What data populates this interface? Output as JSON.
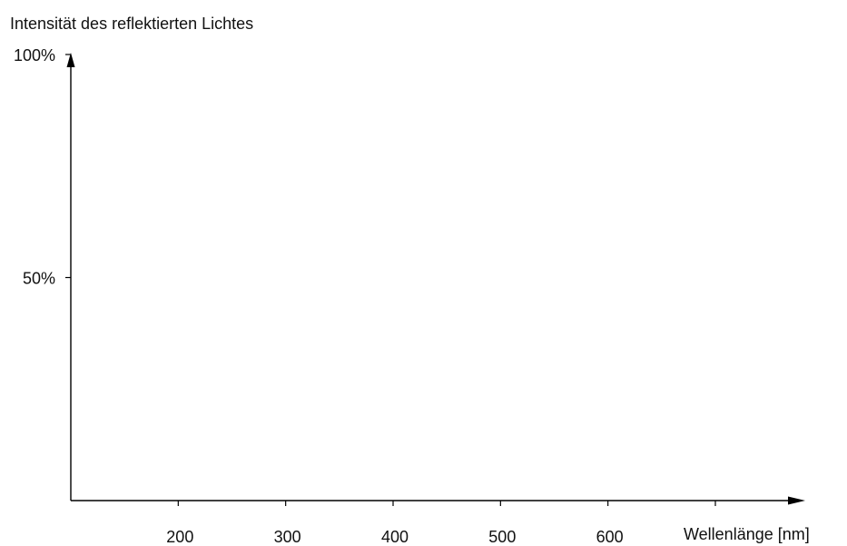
{
  "chart_data": {
    "type": "line",
    "ylabel": "Intensität des reflektierten Lichtes",
    "xlabel": "Wellenlänge [nm]",
    "x_ticks": [
      {
        "value": 200,
        "label": "200"
      },
      {
        "value": 300,
        "label": "300"
      },
      {
        "value": 400,
        "label": "400"
      },
      {
        "value": 500,
        "label": "500"
      },
      {
        "value": 600,
        "label": "600"
      },
      {
        "value": 700,
        "label": ""
      }
    ],
    "y_ticks": [
      {
        "value": 50,
        "label": "50%"
      },
      {
        "value": 100,
        "label": "100%"
      }
    ],
    "xlim": [
      100,
      700
    ],
    "ylim": [
      0,
      100
    ],
    "series": [],
    "grid": false,
    "colors": {
      "axis": "#000000",
      "text": "#111111"
    }
  }
}
